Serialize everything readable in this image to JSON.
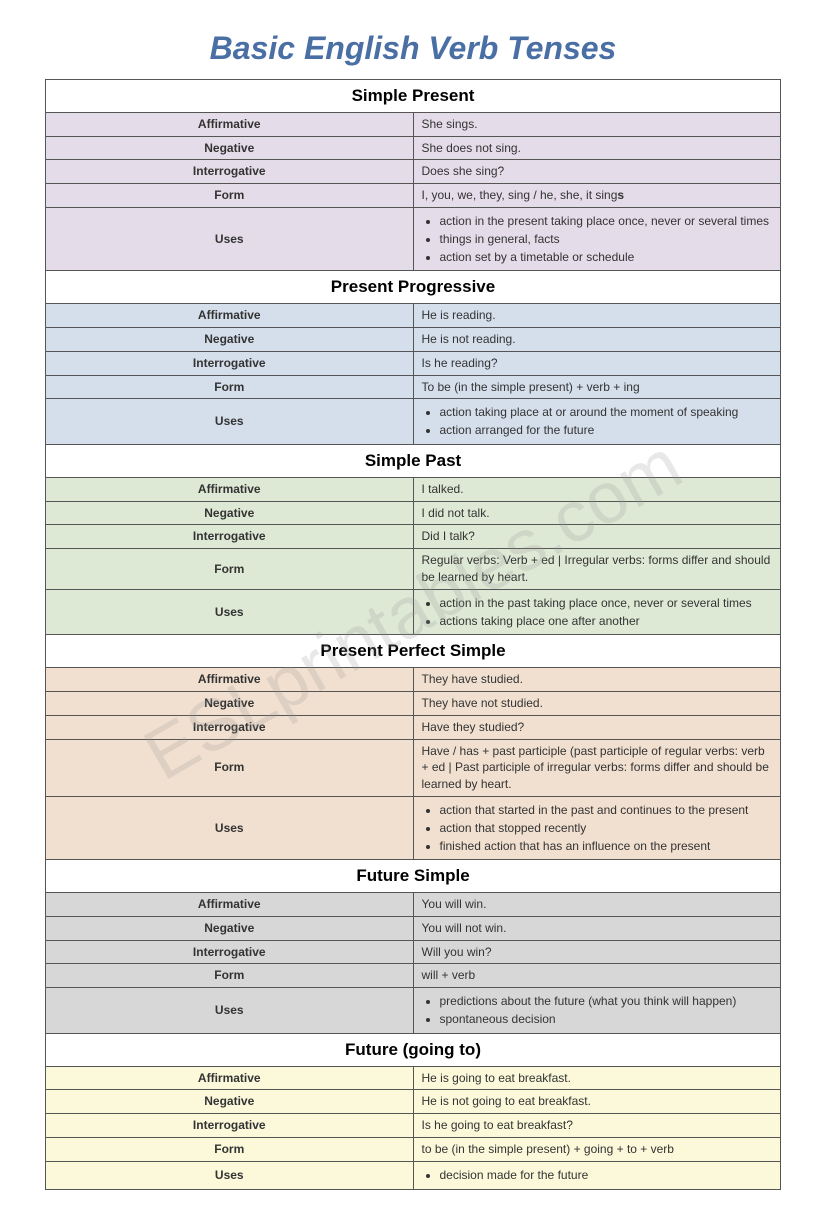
{
  "title": "Basic English Verb Tenses",
  "watermark": "ESLprintables.com",
  "row_labels": {
    "affirmative": "Affirmative",
    "negative": "Negative",
    "interrogative": "Interrogative",
    "form": "Form",
    "uses": "Uses"
  },
  "sections": [
    {
      "name": "Simple Present",
      "bg": "#e4dce8",
      "affirmative": "She sings.",
      "negative": "She does not sing.",
      "interrogative": "Does she sing?",
      "form_prefix": "I, you, we, they, sing / he, she, it sing",
      "form_bold": "s",
      "uses": [
        "action in the present taking place once, never or several times",
        "things in general, facts",
        "action set by a timetable or schedule"
      ]
    },
    {
      "name": "Present Progressive",
      "bg": "#d5dfeb",
      "affirmative": "He is reading.",
      "negative": "He is not reading.",
      "interrogative": "Is he reading?",
      "form": "To be (in the simple present) + verb + ing",
      "uses": [
        "action taking place at or around the moment of speaking",
        "action arranged for the future"
      ]
    },
    {
      "name": "Simple Past",
      "bg": "#dee9d5",
      "affirmative": "I talked.",
      "negative": "I did not talk.",
      "interrogative": "Did I talk?",
      "form": "Regular verbs: Verb + ed | Irregular verbs: forms differ and should be learned by heart.",
      "uses": [
        "action in the past taking place once, never or several times",
        "actions taking place one after another"
      ]
    },
    {
      "name": "Present Perfect Simple",
      "bg": "#f1e0d0",
      "affirmative": "They have studied.",
      "negative": "They have not studied.",
      "interrogative": "Have they studied?",
      "form": "Have / has + past participle (past participle of regular verbs: verb + ed | Past participle of irregular verbs: forms differ and should be learned by heart.",
      "uses": [
        "action that started in the past and continues to the present",
        "action that stopped recently",
        "finished action that has an influence on the present"
      ]
    },
    {
      "name": "Future Simple",
      "bg": "#d7d7d7",
      "affirmative": "You will win.",
      "negative": "You will not win.",
      "interrogative": "Will you win?",
      "form": "will + verb",
      "uses": [
        "predictions about the future (what you think will happen)",
        "spontaneous decision"
      ]
    },
    {
      "name": "Future (going to)",
      "bg": "#fbf9da",
      "affirmative": "He is going to eat breakfast.",
      "negative": "He is not going to eat breakfast.",
      "interrogative": "Is he going to eat breakfast?",
      "form": "to be (in the simple present) + going + to + verb",
      "uses": [
        "decision made for the future"
      ]
    }
  ]
}
